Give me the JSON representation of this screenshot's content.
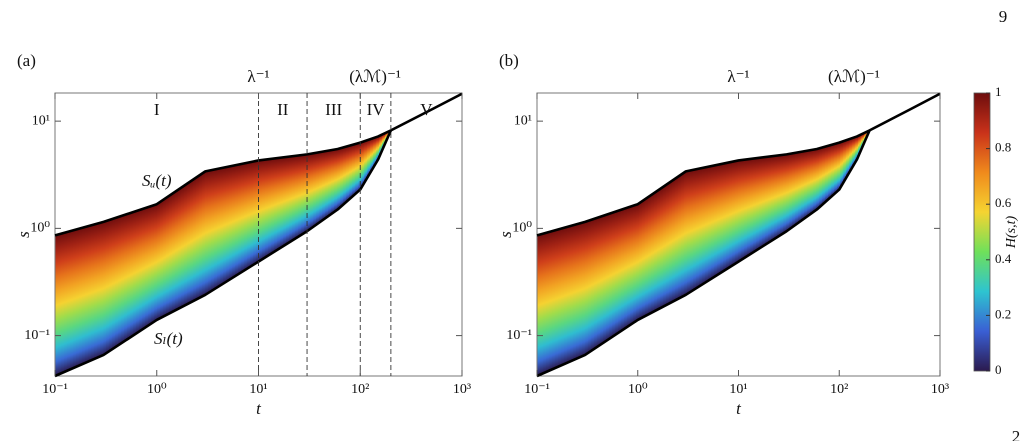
{
  "page_number": "9",
  "page_fragment": "2",
  "chart_data": [
    {
      "type": "area",
      "panel_label": "(a)",
      "xlabel": "t",
      "ylabel": "s",
      "x": [
        0.1,
        0.3,
        1,
        3,
        10,
        30,
        60,
        100,
        150,
        200,
        500,
        1000
      ],
      "series": [
        {
          "name": "Sᵤ(t)",
          "color": "#000000",
          "values": [
            0.86,
            1.15,
            1.68,
            3.4,
            4.3,
            4.9,
            5.5,
            6.3,
            7.2,
            8.2,
            12.8,
            18
          ]
        },
        {
          "name": "Sₗ(t)",
          "color": "#000000",
          "values": [
            0.042,
            0.066,
            0.14,
            0.24,
            0.49,
            0.94,
            1.5,
            2.3,
            4.4,
            8.2,
            null,
            null
          ]
        }
      ],
      "xlim": [
        0.1,
        1000
      ],
      "ylim": [
        0.042,
        18.3
      ],
      "log_x": true,
      "log_y": true,
      "xticks": [
        {
          "value": 0.1,
          "label": "10⁻¹"
        },
        {
          "value": 1,
          "label": "10⁰"
        },
        {
          "value": 10,
          "label": "10¹"
        },
        {
          "value": 100,
          "label": "10²"
        },
        {
          "value": 1000,
          "label": "10³"
        }
      ],
      "yticks": [
        {
          "value": 0.1,
          "label": "10⁻¹"
        },
        {
          "value": 1,
          "label": "10⁰"
        },
        {
          "value": 10,
          "label": "10¹"
        }
      ],
      "vlines": [
        10,
        30,
        100,
        200
      ],
      "regions": [
        "I",
        "II",
        "III",
        "IV",
        "V"
      ],
      "annotations": [
        {
          "text": "λ⁻¹",
          "x": 10
        },
        {
          "text": "(λℳ)⁻¹",
          "x": 140
        }
      ],
      "colormap": [
        "#2b1a4e",
        "#3a5fd4",
        "#2ec4d0",
        "#6fe05a",
        "#f5d431",
        "#f08a1c",
        "#c9321a",
        "#6e0d0d"
      ]
    },
    {
      "type": "area",
      "panel_label": "(b)",
      "xlabel": "t",
      "ylabel": "s",
      "x": [
        0.1,
        0.3,
        1,
        3,
        10,
        30,
        60,
        100,
        150,
        200,
        500,
        1000
      ],
      "series": [
        {
          "color": "#000000",
          "values": [
            0.86,
            1.15,
            1.68,
            3.4,
            4.3,
            4.9,
            5.5,
            6.3,
            7.2,
            8.2,
            12.8,
            18
          ]
        },
        {
          "color": "#000000",
          "values": [
            0.042,
            0.066,
            0.14,
            0.24,
            0.49,
            0.94,
            1.5,
            2.3,
            4.4,
            8.2,
            null,
            null
          ]
        }
      ],
      "xlim": [
        0.1,
        1000
      ],
      "ylim": [
        0.042,
        18.3
      ],
      "log_x": true,
      "log_y": true,
      "xticks": [
        {
          "value": 0.1,
          "label": "10⁻¹"
        },
        {
          "value": 1,
          "label": "10⁰"
        },
        {
          "value": 10,
          "label": "10¹"
        },
        {
          "value": 100,
          "label": "10²"
        },
        {
          "value": 1000,
          "label": "10³"
        }
      ],
      "yticks": [
        {
          "value": 0.1,
          "label": "10⁻¹"
        },
        {
          "value": 1,
          "label": "10⁰"
        },
        {
          "value": 10,
          "label": "10¹"
        }
      ],
      "annotations": [
        {
          "text": "λ⁻¹",
          "x": 10
        },
        {
          "text": "(λℳ)⁻¹",
          "x": 140
        }
      ],
      "colormap": [
        "#2b1a4e",
        "#3a5fd4",
        "#2ec4d0",
        "#6fe05a",
        "#f5d431",
        "#f08a1c",
        "#c9321a",
        "#6e0d0d"
      ],
      "colorbar": {
        "label": "H(s,t)",
        "lim": [
          0,
          1
        ],
        "ticks": [
          0,
          0.2,
          0.4,
          0.6,
          0.8,
          1
        ]
      }
    }
  ]
}
